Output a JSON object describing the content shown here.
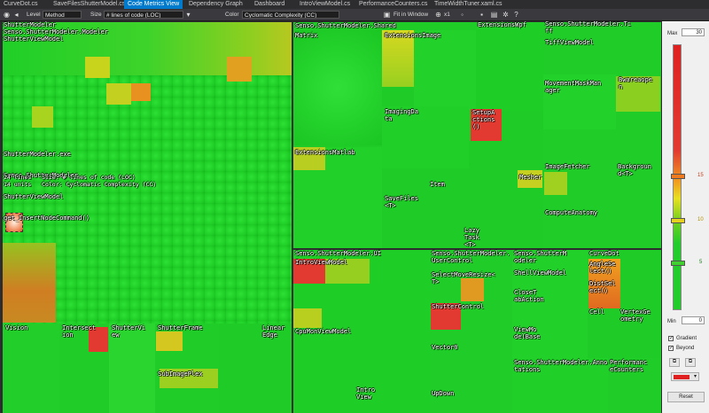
{
  "tabs": [
    {
      "label": "CurveDot.cs",
      "active": false
    },
    {
      "label": "SaveFilesShutterModel.cs",
      "active": false
    },
    {
      "label": "Code Metrics View",
      "active": true
    },
    {
      "label": "Dependency Graph",
      "active": false
    },
    {
      "label": "Dashboard",
      "active": false
    },
    {
      "label": "IntroViewModel.cs",
      "active": false
    },
    {
      "label": "PerformanceCounters.cs",
      "active": false
    },
    {
      "label": "TimeWidthTuner.xaml.cs",
      "active": false
    }
  ],
  "toolbar": {
    "level_label": "Level",
    "level_value": "Method",
    "size_label": "Size",
    "size_value": "# lines of code (LOC)",
    "color_label": "Color",
    "color_value": "Cyclomatic Complexity (CC)",
    "fit_label": "Fit in Window",
    "zoom_label": "x1"
  },
  "tooltip": {
    "title_lines": [
      "ShutterModeler.exe",
      "Senso.ShutterModeler",
      "ShutterViewModel",
      "get_InsertNodeCommand()"
    ],
    "line1": "24 lines   Size: # lines of code (LOC)",
    "line2": "14 units   Color: Cyclomatic Complexity (CC)"
  },
  "labels": {
    "sm_root": "ShutterModeler\nSenso.ShutterModeler.Modeler\nShutterViewModel",
    "vision": "Vision",
    "intersection": "Intersect\nion",
    "shutterview": "ShutterVi\new",
    "shutterframe": "ShutterFrame",
    "subimageplex": "SubImagePlex",
    "linearedge": "Linear\nEdge",
    "shared": "Senso.ShutterModeler.Shared",
    "matrix": "Matrix",
    "extensionsimage": "ExtensionsImage",
    "extensionswpf": "ExtensionsWpf",
    "imagingdata": "ImagingDa\nta",
    "setupactions": "SetupA\nctions\n()",
    "extensionsmatlab": "ExtensionsMatlab",
    "savefiles": "SaveFiles\n<T>",
    "item": "Item",
    "mesher": "Mesher",
    "lazytask": "Lazy\nTask\n<T>",
    "tiff_ns": "Senso.ShutterModeler.Ti\nff",
    "tiffviewmodel": "TiffViewModel",
    "movementmask": "MovementMaskMan\nager",
    "bwareaopen": "Bwareaope\nn",
    "imagefetcher": "ImageFetcher",
    "background": "Backgroun\nd<T>",
    "computeanatomy": "ComputeAnatomy",
    "ui_ns": "Senso.ShutterModeler.UI",
    "introviewmodel": "IntroViewModel",
    "cpumonviewmodel": "CpuMonViewModel",
    "introview": "Intro\nView",
    "usercontrol_ns": "Senso.ShutterModeler.UserControl",
    "selectmoveresize": "SelectMoveResize<\nT>",
    "shuttercontrol": "ShutterControl",
    "vector0": "Vector0",
    "updown": "UpDown",
    "shell_ns": "Senso.ShutterM\nodeler",
    "shellviewmodel": "ShellViewModel",
    "closetab": "CloseT\nabAction",
    "viewmodelbase": "ViewMo\ndelBase",
    "curvedot": "CurveDot",
    "anglesel": "AngleSe\nlect()",
    "distsel": "DistSel\nect()",
    "cell": "Cell",
    "vertexgeometry": "VertexGe\nometry",
    "annotations_ns": "Senso.ShutterModeler.Annotations",
    "perfcounters": "Performanc\neCounters"
  },
  "panel": {
    "max_label": "Max",
    "max_value": "30",
    "min_label": "Min",
    "min_value": "0",
    "scale_high": "15",
    "scale_mid": "10",
    "scale_low": "5",
    "gradient_label": "Gradient",
    "beyond_label": "Beyond",
    "reset_label": "Reset"
  },
  "colors": {
    "green": "#22d62a",
    "yellow": "#e8e020",
    "orange": "#f08a20",
    "red": "#e23a30",
    "accent": "#007acc"
  }
}
